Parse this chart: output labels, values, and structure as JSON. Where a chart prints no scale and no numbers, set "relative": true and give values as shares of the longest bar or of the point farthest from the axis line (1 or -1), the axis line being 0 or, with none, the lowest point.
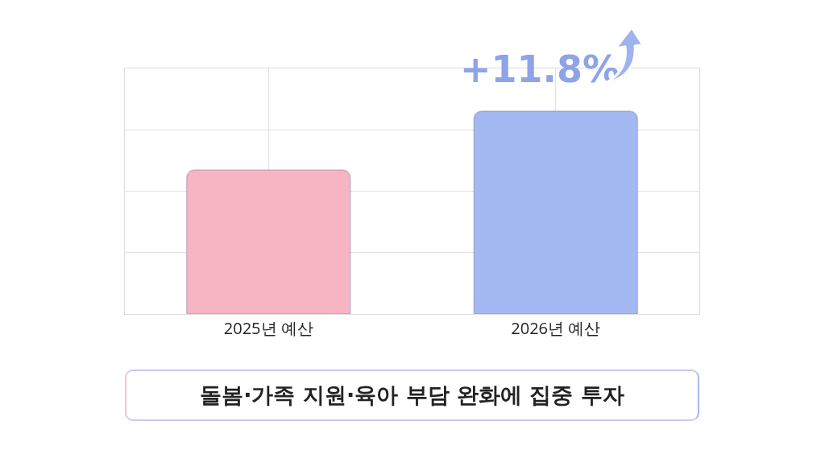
{
  "chart_data": {
    "type": "bar",
    "relative": true,
    "categories": [
      "2025년 예산",
      "2026년 예산"
    ],
    "values": [
      0.71,
      1
    ],
    "colors": [
      "#f7b4c3",
      "#a4b9f1"
    ],
    "grid": true,
    "annotations": [
      "+11.8%",
      "돌봄·가족 지원·육아 부담 완화에 집중 투자"
    ]
  }
}
